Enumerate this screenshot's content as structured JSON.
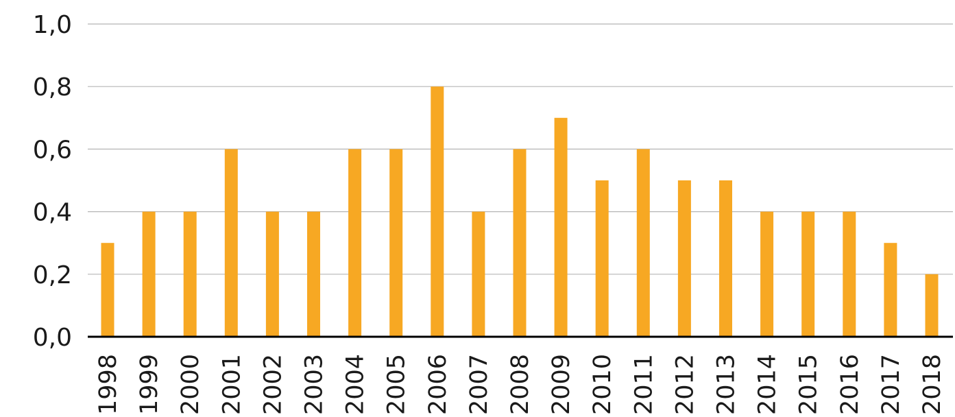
{
  "chart_data": {
    "type": "bar",
    "title": "",
    "xlabel": "",
    "ylabel": "",
    "categories": [
      "1998",
      "1999",
      "2000",
      "2001",
      "2002",
      "2003",
      "2004",
      "2005",
      "2006",
      "2007",
      "2008",
      "2009",
      "2010",
      "2011",
      "2012",
      "2013",
      "2014",
      "2015",
      "2016",
      "2017",
      "2018"
    ],
    "values": [
      0.3,
      0.4,
      0.4,
      0.6,
      0.4,
      0.4,
      0.6,
      0.6,
      0.8,
      0.4,
      0.6,
      0.7,
      0.5,
      0.6,
      0.5,
      0.5,
      0.4,
      0.4,
      0.4,
      0.3,
      0.2
    ],
    "ylim": [
      0,
      1.0
    ],
    "yticks": [
      0,
      0.2,
      0.4,
      0.6,
      0.8,
      1.0
    ],
    "ytick_labels": [
      "0,0",
      "0,2",
      "0,4",
      "0,6",
      "0,8",
      "1,0"
    ],
    "grid": true,
    "bar_color": "#F7A823",
    "grid_color": "#B5B5B5",
    "axis_color": "#000000"
  }
}
